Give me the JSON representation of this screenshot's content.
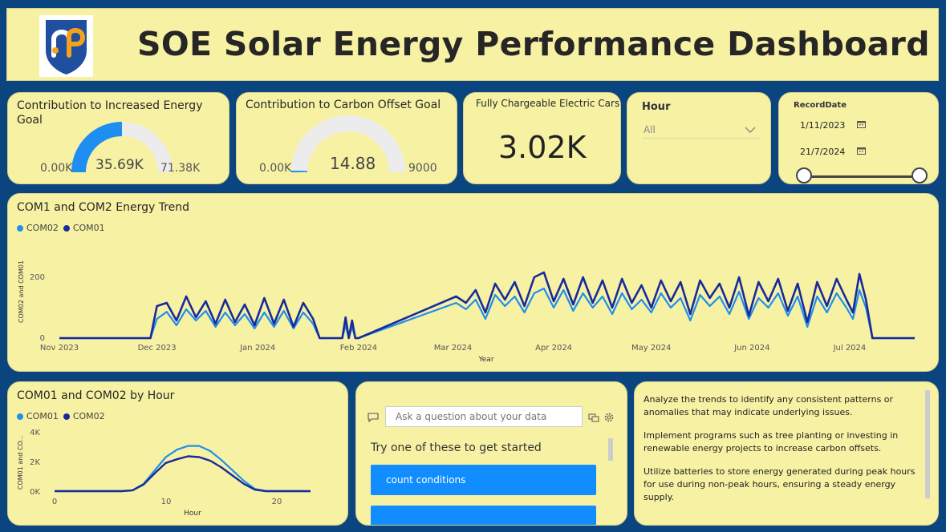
{
  "header": {
    "title": "SOE Solar Energy Performance Dashboard"
  },
  "colors": {
    "com01": "#1a2a9a",
    "com02": "#1e8ff0",
    "background": "#0b4580",
    "panel": "#f7f1a4",
    "accent": "#118dff"
  },
  "gauge_energy": {
    "title": "Contribution to Increased Energy Goal",
    "min": "0.00K",
    "max": "71.38K",
    "value": "35.69K",
    "fraction": 0.5
  },
  "gauge_carbon": {
    "title": "Contribution to Carbon Offset Goal",
    "min": "0.00K",
    "max": "9000",
    "value": "14.88",
    "fraction": 0.0017
  },
  "kpi_cars": {
    "title": "Fully Chargeable Electric Cars",
    "value": "3.02K"
  },
  "hour_slicer": {
    "title": "Hour",
    "selected": "All"
  },
  "date_slicer": {
    "title": "RecordDate",
    "start": "1/11/2023",
    "end": "21/7/2024"
  },
  "trend_chart": {
    "title": "COM1 and COM2 Energy Trend",
    "legend": [
      "COM02",
      "COM01"
    ],
    "xlabel": "Year",
    "ylabel": "COM02 and COM01",
    "y_ticks": [
      "200",
      "0"
    ],
    "x_ticks": [
      "Nov 2023",
      "Dec 2023",
      "Jan 2024",
      "Feb 2024",
      "Mar 2024",
      "Apr 2024",
      "May 2024",
      "Jun 2024",
      "Jul 2024"
    ]
  },
  "chart_data": [
    {
      "type": "line",
      "title": "COM1 and COM2 Energy Trend",
      "xlabel": "Year",
      "ylabel": "COM02 and COM01",
      "ylim": [
        0,
        220
      ],
      "x": [
        "2023-11-01",
        "2023-11-29",
        "2023-12-01",
        "2023-12-04",
        "2023-12-07",
        "2023-12-10",
        "2023-12-13",
        "2023-12-16",
        "2023-12-19",
        "2023-12-22",
        "2023-12-25",
        "2023-12-28",
        "2023-12-31",
        "2024-01-03",
        "2024-01-06",
        "2024-01-09",
        "2024-01-12",
        "2024-01-15",
        "2024-01-18",
        "2024-01-20",
        "2024-01-27",
        "2024-01-28",
        "2024-01-29",
        "2024-01-30",
        "2024-01-31",
        "2024-02-01",
        "2024-03-02",
        "2024-03-05",
        "2024-03-08",
        "2024-03-11",
        "2024-03-14",
        "2024-03-17",
        "2024-03-20",
        "2024-03-23",
        "2024-03-26",
        "2024-03-29",
        "2024-04-01",
        "2024-04-04",
        "2024-04-07",
        "2024-04-10",
        "2024-04-13",
        "2024-04-16",
        "2024-04-19",
        "2024-04-22",
        "2024-04-25",
        "2024-04-28",
        "2024-05-01",
        "2024-05-04",
        "2024-05-07",
        "2024-05-10",
        "2024-05-13",
        "2024-05-16",
        "2024-05-19",
        "2024-05-22",
        "2024-05-25",
        "2024-05-28",
        "2024-05-31",
        "2024-06-03",
        "2024-06-06",
        "2024-06-09",
        "2024-06-12",
        "2024-06-15",
        "2024-06-18",
        "2024-06-21",
        "2024-06-24",
        "2024-06-27",
        "2024-06-30",
        "2024-07-02",
        "2024-07-04",
        "2024-07-06",
        "2024-07-08",
        "2024-07-21"
      ],
      "series": [
        {
          "name": "COM02",
          "values": [
            0,
            0,
            60,
            82,
            40,
            90,
            55,
            85,
            35,
            80,
            40,
            75,
            30,
            80,
            35,
            85,
            30,
            80,
            45,
            0,
            0,
            40,
            0,
            35,
            0,
            0,
            110,
            90,
            120,
            60,
            135,
            100,
            130,
            80,
            140,
            155,
            95,
            150,
            85,
            140,
            95,
            130,
            75,
            140,
            90,
            120,
            80,
            140,
            95,
            125,
            55,
            135,
            100,
            130,
            75,
            145,
            60,
            125,
            95,
            140,
            70,
            130,
            35,
            130,
            80,
            140,
            95,
            60,
            150,
            95,
            0,
            0
          ]
        },
        {
          "name": "COM01",
          "values": [
            0,
            0,
            100,
            110,
            55,
            130,
            65,
            115,
            45,
            120,
            50,
            105,
            40,
            125,
            45,
            120,
            35,
            110,
            60,
            0,
            0,
            65,
            0,
            55,
            0,
            0,
            130,
            110,
            150,
            80,
            170,
            120,
            175,
            100,
            190,
            205,
            115,
            185,
            105,
            190,
            110,
            180,
            95,
            185,
            110,
            165,
            95,
            180,
            115,
            175,
            75,
            180,
            125,
            170,
            95,
            190,
            70,
            175,
            115,
            185,
            85,
            170,
            50,
            175,
            100,
            185,
            120,
            80,
            200,
            120,
            0,
            0
          ]
        }
      ]
    },
    {
      "type": "line",
      "title": "COM01 and COM02 by Hour",
      "xlabel": "Hour",
      "ylabel": "COM01 and COM02",
      "ylim": [
        0,
        4000
      ],
      "x": [
        0,
        1,
        2,
        3,
        4,
        5,
        6,
        7,
        8,
        9,
        10,
        11,
        12,
        13,
        14,
        15,
        16,
        17,
        18,
        19,
        20,
        21,
        22,
        23
      ],
      "series": [
        {
          "name": "COM01",
          "values": [
            0,
            0,
            0,
            0,
            0,
            0,
            0,
            60,
            500,
            1400,
            2300,
            2800,
            3050,
            3050,
            2700,
            2100,
            1400,
            700,
            150,
            0,
            0,
            0,
            0,
            0
          ]
        },
        {
          "name": "COM02",
          "values": [
            0,
            0,
            0,
            0,
            0,
            0,
            0,
            50,
            450,
            1200,
            1900,
            2150,
            2350,
            2300,
            2050,
            1600,
            1050,
            500,
            100,
            0,
            0,
            0,
            0,
            0
          ]
        }
      ]
    }
  ],
  "hour_chart": {
    "title": "COM01 and COM02 by Hour",
    "legend": [
      "COM01",
      "COM02"
    ],
    "xlabel": "Hour",
    "ylabel": "COM01 and CO...",
    "y_ticks": [
      "4K",
      "2K",
      "0K"
    ],
    "x_ticks": [
      "0",
      "10",
      "20"
    ]
  },
  "qa": {
    "placeholder": "Ask a question about your data",
    "try_label": "Try one of these to get started",
    "suggestion_1": "count conditions"
  },
  "notes": [
    "Analyze the trends to identify any consistent patterns or anomalies that may indicate underlying issues.",
    "Implement programs such as tree planting or investing in renewable energy projects to increase carbon offsets.",
    "Utilize batteries to store energy generated during peak hours for use during non-peak hours, ensuring a steady energy supply."
  ]
}
